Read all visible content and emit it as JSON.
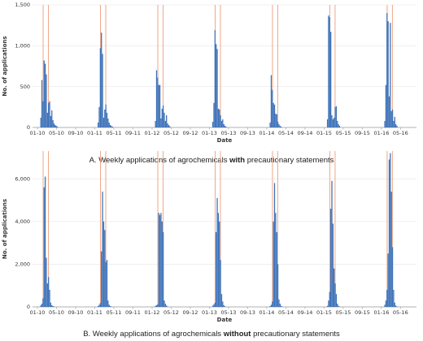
{
  "chart_data": [
    {
      "type": "bar",
      "panel": "A",
      "caption_prefix": "A. Weekly applications of agrochemicals ",
      "caption_bold": "with",
      "caption_suffix": " precautionary statements",
      "xlabel": "Date",
      "ylabel": "No. of applications",
      "ylim": [
        0,
        1500
      ],
      "yticks": [
        0,
        500,
        1000,
        1500
      ],
      "ytick_labels": [
        "0",
        "500",
        "1,000",
        "1,500"
      ],
      "xticks": [
        "01-10",
        "05-10",
        "09-10",
        "01-11",
        "05-11",
        "09-11",
        "01-12",
        "05-12",
        "09-12",
        "01-13",
        "05-13",
        "09-13",
        "01-14",
        "05-14",
        "09-14",
        "01-15",
        "05-15",
        "09-15",
        "01-16",
        "05-16"
      ],
      "grid": true,
      "bar_color": "#3e72b8",
      "vline_color": "#f0a789",
      "vlines_month_index": [
        1.2,
        2.3,
        13.2,
        14.3,
        25.2,
        26.3,
        37.2,
        38.3,
        49.2,
        50.3,
        61.2,
        62.3,
        73.2,
        74.3
      ],
      "seasons": [
        {
          "year": "2010",
          "values": [
            120,
            580,
            320,
            820,
            780,
            650,
            180,
            300,
            320,
            140,
            210,
            90,
            50,
            30,
            20,
            10
          ]
        },
        {
          "year": "2011",
          "values": [
            60,
            250,
            970,
            1160,
            900,
            120,
            220,
            280,
            180,
            110,
            60,
            30,
            20,
            10
          ]
        },
        {
          "year": "2012",
          "values": [
            80,
            700,
            610,
            520,
            520,
            110,
            230,
            270,
            180,
            80,
            150,
            50,
            30,
            15
          ]
        },
        {
          "year": "2013",
          "values": [
            70,
            300,
            1190,
            1020,
            960,
            230,
            220,
            150,
            80,
            100,
            40,
            20,
            10
          ]
        },
        {
          "year": "2014",
          "values": [
            60,
            640,
            460,
            300,
            280,
            170,
            160,
            70,
            40,
            20,
            10
          ]
        },
        {
          "year": "2015",
          "values": [
            100,
            1370,
            1350,
            1170,
            150,
            100,
            120,
            250,
            260,
            80,
            40,
            20
          ]
        },
        {
          "year": "2016",
          "values": [
            80,
            520,
            1400,
            1300,
            380,
            1280,
            200,
            220,
            80,
            130,
            40,
            20
          ]
        }
      ]
    },
    {
      "type": "bar",
      "panel": "B",
      "caption_prefix": "B. Weekly applications of agrochemicals ",
      "caption_bold": "without",
      "caption_suffix": " precautionary statements",
      "xlabel": "Date",
      "ylabel": "No. of applications",
      "ylim": [
        0,
        7300
      ],
      "yticks": [
        0,
        2000,
        4000,
        6000
      ],
      "ytick_labels": [
        "0",
        "2,000",
        "4,000",
        "6,000"
      ],
      "xticks": [
        "01-10",
        "05-10",
        "09-10",
        "01-11",
        "05-11",
        "09-11",
        "01-12",
        "05-12",
        "09-12",
        "01-13",
        "05-13",
        "09-13",
        "01-14",
        "05-14",
        "09-14",
        "01-15",
        "05-15",
        "09-15",
        "01-16",
        "05-16"
      ],
      "grid": true,
      "bar_color": "#3e72b8",
      "vline_color": "#f0a789",
      "vlines_month_index": [
        1.2,
        2.3,
        13.2,
        14.3,
        25.2,
        26.3,
        37.2,
        38.3,
        49.2,
        50.3,
        61.2,
        62.3,
        73.2,
        74.3
      ],
      "seasons": [
        {
          "year": "2010",
          "values": [
            80,
            150,
            400,
            5600,
            6100,
            2300,
            1100,
            1400,
            800,
            200,
            80,
            40,
            20
          ]
        },
        {
          "year": "2011",
          "values": [
            40,
            100,
            180,
            2600,
            5400,
            4000,
            3600,
            2100,
            2200,
            300,
            100,
            40,
            20
          ]
        },
        {
          "year": "2012",
          "values": [
            50,
            80,
            120,
            4400,
            4300,
            4400,
            4000,
            3500,
            300,
            150,
            60,
            20
          ]
        },
        {
          "year": "2013",
          "values": [
            60,
            120,
            200,
            3500,
            5100,
            4400,
            4000,
            2200,
            600,
            250,
            80,
            30
          ]
        },
        {
          "year": "2014",
          "values": [
            40,
            100,
            250,
            4000,
            5800,
            4400,
            3500,
            2000,
            350,
            150,
            50,
            20
          ]
        },
        {
          "year": "2015",
          "values": [
            50,
            300,
            700,
            4600,
            5900,
            3900,
            1800,
            1100,
            600,
            150,
            50,
            20
          ]
        },
        {
          "year": "2016",
          "values": [
            100,
            300,
            800,
            2500,
            6900,
            7200,
            5400,
            2800,
            800,
            200,
            60,
            20
          ]
        }
      ]
    }
  ]
}
